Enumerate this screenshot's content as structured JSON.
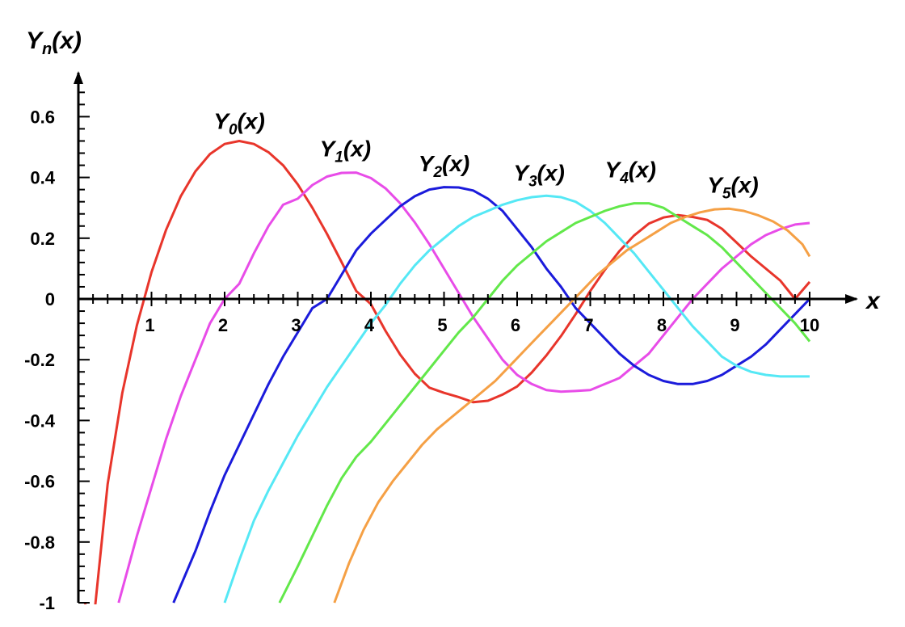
{
  "chart_data": {
    "type": "line",
    "title": "",
    "ylabel": {
      "main": "Y",
      "sub": "n",
      "rest": "(x)"
    },
    "xlabel": "x",
    "xlim": [
      0,
      10.65
    ],
    "ylim": [
      -1,
      0.75
    ],
    "x_ticks": [
      {
        "value": 1,
        "label": "1"
      },
      {
        "value": 2,
        "label": "2"
      },
      {
        "value": 3,
        "label": "3"
      },
      {
        "value": 4,
        "label": "4"
      },
      {
        "value": 5,
        "label": "5"
      },
      {
        "value": 6,
        "label": "6"
      },
      {
        "value": 7,
        "label": "7"
      },
      {
        "value": 8,
        "label": "8"
      },
      {
        "value": 9,
        "label": "9"
      },
      {
        "value": 10,
        "label": "10"
      }
    ],
    "y_ticks": [
      {
        "value": 0.6,
        "label": "0.6"
      },
      {
        "value": 0.4,
        "label": "0.4"
      },
      {
        "value": 0.2,
        "label": "0.2"
      },
      {
        "value": 0,
        "label": "0"
      },
      {
        "value": -0.2,
        "label": "-0.2"
      },
      {
        "value": -0.4,
        "label": "-0.4"
      },
      {
        "value": -0.6,
        "label": "-0.6"
      },
      {
        "value": -0.8,
        "label": "-0.8"
      },
      {
        "value": -1,
        "label": "-1"
      }
    ],
    "grid": false,
    "series": [
      {
        "name_main": "Y",
        "name_sub": "0",
        "name_rest": "(x)",
        "color": "#e8352b",
        "label_anchor": {
          "x": 2.2,
          "y": 0.56
        },
        "points": [
          [
            0.09,
            -1.0
          ],
          [
            0.2,
            -1.08
          ],
          [
            0.4,
            -0.61
          ],
          [
            0.6,
            -0.31
          ],
          [
            0.8,
            -0.087
          ],
          [
            1.0,
            0.088
          ],
          [
            1.2,
            0.228
          ],
          [
            1.4,
            0.338
          ],
          [
            1.6,
            0.42
          ],
          [
            1.8,
            0.477
          ],
          [
            2.0,
            0.51
          ],
          [
            2.2,
            0.52
          ],
          [
            2.4,
            0.51
          ],
          [
            2.6,
            0.483
          ],
          [
            2.8,
            0.44
          ],
          [
            3.0,
            0.377
          ],
          [
            3.2,
            0.3
          ],
          [
            3.4,
            0.214
          ],
          [
            3.6,
            0.121
          ],
          [
            3.8,
            0.026
          ],
          [
            4.0,
            -0.017
          ],
          [
            4.2,
            -0.105
          ],
          [
            4.4,
            -0.183
          ],
          [
            4.6,
            -0.246
          ],
          [
            4.8,
            -0.292
          ],
          [
            5.0,
            -0.309
          ],
          [
            5.2,
            -0.323
          ],
          [
            5.4,
            -0.34
          ],
          [
            5.6,
            -0.335
          ],
          [
            5.8,
            -0.315
          ],
          [
            6.0,
            -0.288
          ],
          [
            6.2,
            -0.242
          ],
          [
            6.4,
            -0.186
          ],
          [
            6.6,
            -0.122
          ],
          [
            6.8,
            -0.05
          ],
          [
            7.0,
            0.026
          ],
          [
            7.2,
            0.096
          ],
          [
            7.4,
            0.158
          ],
          [
            7.6,
            0.209
          ],
          [
            7.8,
            0.248
          ],
          [
            8.0,
            0.268
          ],
          [
            8.2,
            0.276
          ],
          [
            8.4,
            0.27
          ],
          [
            8.6,
            0.26
          ],
          [
            8.8,
            0.231
          ],
          [
            9.0,
            0.186
          ],
          [
            9.2,
            0.14
          ],
          [
            9.4,
            0.1
          ],
          [
            9.6,
            0.06
          ],
          [
            9.8,
            0.0
          ],
          [
            10.0,
            0.056
          ]
        ]
      },
      {
        "name_main": "Y",
        "name_sub": "1",
        "name_rest": "(x)",
        "color": "#e84ce8",
        "label_anchor": {
          "x": 3.65,
          "y": 0.47
        },
        "points": [
          [
            0.55,
            -1.0
          ],
          [
            0.8,
            -0.78
          ],
          [
            1.0,
            -0.62
          ],
          [
            1.2,
            -0.46
          ],
          [
            1.4,
            -0.32
          ],
          [
            1.6,
            -0.2
          ],
          [
            1.8,
            -0.08
          ],
          [
            2.0,
            -0.0
          ],
          [
            2.2,
            0.05
          ],
          [
            2.4,
            0.15
          ],
          [
            2.6,
            0.24
          ],
          [
            2.8,
            0.31
          ],
          [
            3.0,
            0.33
          ],
          [
            3.2,
            0.375
          ],
          [
            3.4,
            0.403
          ],
          [
            3.6,
            0.415
          ],
          [
            3.8,
            0.416
          ],
          [
            4.0,
            0.398
          ],
          [
            4.2,
            0.364
          ],
          [
            4.4,
            0.315
          ],
          [
            4.6,
            0.252
          ],
          [
            4.8,
            0.18
          ],
          [
            5.0,
            0.1
          ],
          [
            5.2,
            0.02
          ],
          [
            5.4,
            -0.06
          ],
          [
            5.6,
            -0.13
          ],
          [
            5.8,
            -0.2
          ],
          [
            6.0,
            -0.25
          ],
          [
            6.2,
            -0.28
          ],
          [
            6.4,
            -0.3
          ],
          [
            6.6,
            -0.305
          ],
          [
            6.8,
            -0.303
          ],
          [
            7.0,
            -0.3
          ],
          [
            7.2,
            -0.28
          ],
          [
            7.4,
            -0.26
          ],
          [
            7.6,
            -0.22
          ],
          [
            7.8,
            -0.18
          ],
          [
            8.0,
            -0.12
          ],
          [
            8.2,
            -0.06
          ],
          [
            8.4,
            0.0
          ],
          [
            8.6,
            0.05
          ],
          [
            8.8,
            0.1
          ],
          [
            9.0,
            0.14
          ],
          [
            9.2,
            0.18
          ],
          [
            9.4,
            0.21
          ],
          [
            9.6,
            0.23
          ],
          [
            9.8,
            0.245
          ],
          [
            10.0,
            0.25
          ]
        ]
      },
      {
        "name_main": "Y",
        "name_sub": "2",
        "name_rest": "(x)",
        "color": "#1b1bdb",
        "label_anchor": {
          "x": 5.0,
          "y": 0.42
        },
        "points": [
          [
            1.3,
            -1.0
          ],
          [
            1.6,
            -0.83
          ],
          [
            1.8,
            -0.7
          ],
          [
            2.0,
            -0.58
          ],
          [
            2.2,
            -0.48
          ],
          [
            2.4,
            -0.38
          ],
          [
            2.6,
            -0.28
          ],
          [
            2.8,
            -0.19
          ],
          [
            3.0,
            -0.11
          ],
          [
            3.2,
            -0.03
          ],
          [
            3.4,
            0.0
          ],
          [
            3.6,
            0.08
          ],
          [
            3.8,
            0.16
          ],
          [
            4.0,
            0.215
          ],
          [
            4.2,
            0.26
          ],
          [
            4.4,
            0.305
          ],
          [
            4.6,
            0.338
          ],
          [
            4.8,
            0.36
          ],
          [
            5.0,
            0.368
          ],
          [
            5.2,
            0.367
          ],
          [
            5.4,
            0.357
          ],
          [
            5.6,
            0.33
          ],
          [
            5.8,
            0.29
          ],
          [
            6.0,
            0.23
          ],
          [
            6.2,
            0.17
          ],
          [
            6.4,
            0.1
          ],
          [
            6.6,
            0.04
          ],
          [
            6.8,
            -0.03
          ],
          [
            7.0,
            -0.08
          ],
          [
            7.2,
            -0.13
          ],
          [
            7.4,
            -0.18
          ],
          [
            7.6,
            -0.22
          ],
          [
            7.8,
            -0.25
          ],
          [
            8.0,
            -0.27
          ],
          [
            8.2,
            -0.28
          ],
          [
            8.4,
            -0.28
          ],
          [
            8.6,
            -0.27
          ],
          [
            8.8,
            -0.25
          ],
          [
            9.0,
            -0.22
          ],
          [
            9.2,
            -0.19
          ],
          [
            9.4,
            -0.15
          ],
          [
            9.6,
            -0.1
          ],
          [
            9.8,
            -0.05
          ],
          [
            10.0,
            0.0
          ]
        ]
      },
      {
        "name_main": "Y",
        "name_sub": "3",
        "name_rest": "(x)",
        "color": "#55e8f5",
        "label_anchor": {
          "x": 6.3,
          "y": 0.39
        },
        "points": [
          [
            2.0,
            -1.0
          ],
          [
            2.2,
            -0.86
          ],
          [
            2.4,
            -0.73
          ],
          [
            2.6,
            -0.63
          ],
          [
            2.8,
            -0.54
          ],
          [
            3.0,
            -0.45
          ],
          [
            3.2,
            -0.37
          ],
          [
            3.4,
            -0.29
          ],
          [
            3.6,
            -0.22
          ],
          [
            3.8,
            -0.15
          ],
          [
            4.0,
            -0.08
          ],
          [
            4.2,
            -0.02
          ],
          [
            4.4,
            0.05
          ],
          [
            4.6,
            0.11
          ],
          [
            4.8,
            0.16
          ],
          [
            5.0,
            0.2
          ],
          [
            5.2,
            0.24
          ],
          [
            5.4,
            0.27
          ],
          [
            5.6,
            0.29
          ],
          [
            5.8,
            0.31
          ],
          [
            6.0,
            0.325
          ],
          [
            6.2,
            0.335
          ],
          [
            6.4,
            0.34
          ],
          [
            6.6,
            0.335
          ],
          [
            6.8,
            0.32
          ],
          [
            7.0,
            0.29
          ],
          [
            7.2,
            0.25
          ],
          [
            7.4,
            0.2
          ],
          [
            7.6,
            0.15
          ],
          [
            7.8,
            0.09
          ],
          [
            8.0,
            0.03
          ],
          [
            8.2,
            -0.03
          ],
          [
            8.4,
            -0.09
          ],
          [
            8.6,
            -0.14
          ],
          [
            8.8,
            -0.19
          ],
          [
            9.0,
            -0.22
          ],
          [
            9.2,
            -0.24
          ],
          [
            9.4,
            -0.25
          ],
          [
            9.6,
            -0.255
          ],
          [
            9.8,
            -0.255
          ],
          [
            10.0,
            -0.255
          ]
        ]
      },
      {
        "name_main": "Y",
        "name_sub": "4",
        "name_rest": "(x)",
        "color": "#62e84a",
        "label_anchor": {
          "x": 7.55,
          "y": 0.4
        },
        "points": [
          [
            2.75,
            -1.0
          ],
          [
            3.0,
            -0.88
          ],
          [
            3.2,
            -0.78
          ],
          [
            3.4,
            -0.68
          ],
          [
            3.6,
            -0.59
          ],
          [
            3.8,
            -0.52
          ],
          [
            4.0,
            -0.47
          ],
          [
            4.2,
            -0.41
          ],
          [
            4.4,
            -0.35
          ],
          [
            4.6,
            -0.29
          ],
          [
            4.8,
            -0.23
          ],
          [
            5.0,
            -0.17
          ],
          [
            5.2,
            -0.11
          ],
          [
            5.4,
            -0.06
          ],
          [
            5.6,
            0.0
          ],
          [
            5.8,
            0.06
          ],
          [
            6.0,
            0.11
          ],
          [
            6.2,
            0.15
          ],
          [
            6.4,
            0.19
          ],
          [
            6.6,
            0.22
          ],
          [
            6.8,
            0.25
          ],
          [
            7.0,
            0.27
          ],
          [
            7.2,
            0.29
          ],
          [
            7.4,
            0.305
          ],
          [
            7.6,
            0.315
          ],
          [
            7.8,
            0.315
          ],
          [
            8.0,
            0.3
          ],
          [
            8.2,
            0.27
          ],
          [
            8.4,
            0.24
          ],
          [
            8.6,
            0.21
          ],
          [
            8.8,
            0.17
          ],
          [
            9.0,
            0.12
          ],
          [
            9.2,
            0.07
          ],
          [
            9.4,
            0.02
          ],
          [
            9.6,
            -0.03
          ],
          [
            9.8,
            -0.08
          ],
          [
            10.0,
            -0.14
          ]
        ]
      },
      {
        "name_main": "Y",
        "name_sub": "5",
        "name_rest": "(x)",
        "color": "#f5a045",
        "label_anchor": {
          "x": 8.95,
          "y": 0.35
        },
        "points": [
          [
            3.5,
            -1.0
          ],
          [
            3.7,
            -0.87
          ],
          [
            3.9,
            -0.76
          ],
          [
            4.1,
            -0.67
          ],
          [
            4.3,
            -0.6
          ],
          [
            4.5,
            -0.54
          ],
          [
            4.7,
            -0.48
          ],
          [
            4.9,
            -0.43
          ],
          [
            5.1,
            -0.39
          ],
          [
            5.3,
            -0.35
          ],
          [
            5.5,
            -0.31
          ],
          [
            5.7,
            -0.27
          ],
          [
            5.9,
            -0.22
          ],
          [
            6.1,
            -0.17
          ],
          [
            6.3,
            -0.12
          ],
          [
            6.5,
            -0.07
          ],
          [
            6.7,
            -0.02
          ],
          [
            6.9,
            0.03
          ],
          [
            7.1,
            0.08
          ],
          [
            7.3,
            0.12
          ],
          [
            7.5,
            0.16
          ],
          [
            7.7,
            0.19
          ],
          [
            7.9,
            0.22
          ],
          [
            8.1,
            0.25
          ],
          [
            8.3,
            0.27
          ],
          [
            8.5,
            0.285
          ],
          [
            8.7,
            0.295
          ],
          [
            8.9,
            0.297
          ],
          [
            9.1,
            0.29
          ],
          [
            9.3,
            0.275
          ],
          [
            9.5,
            0.255
          ],
          [
            9.7,
            0.225
          ],
          [
            9.9,
            0.18
          ],
          [
            10.0,
            0.14
          ]
        ]
      }
    ]
  }
}
